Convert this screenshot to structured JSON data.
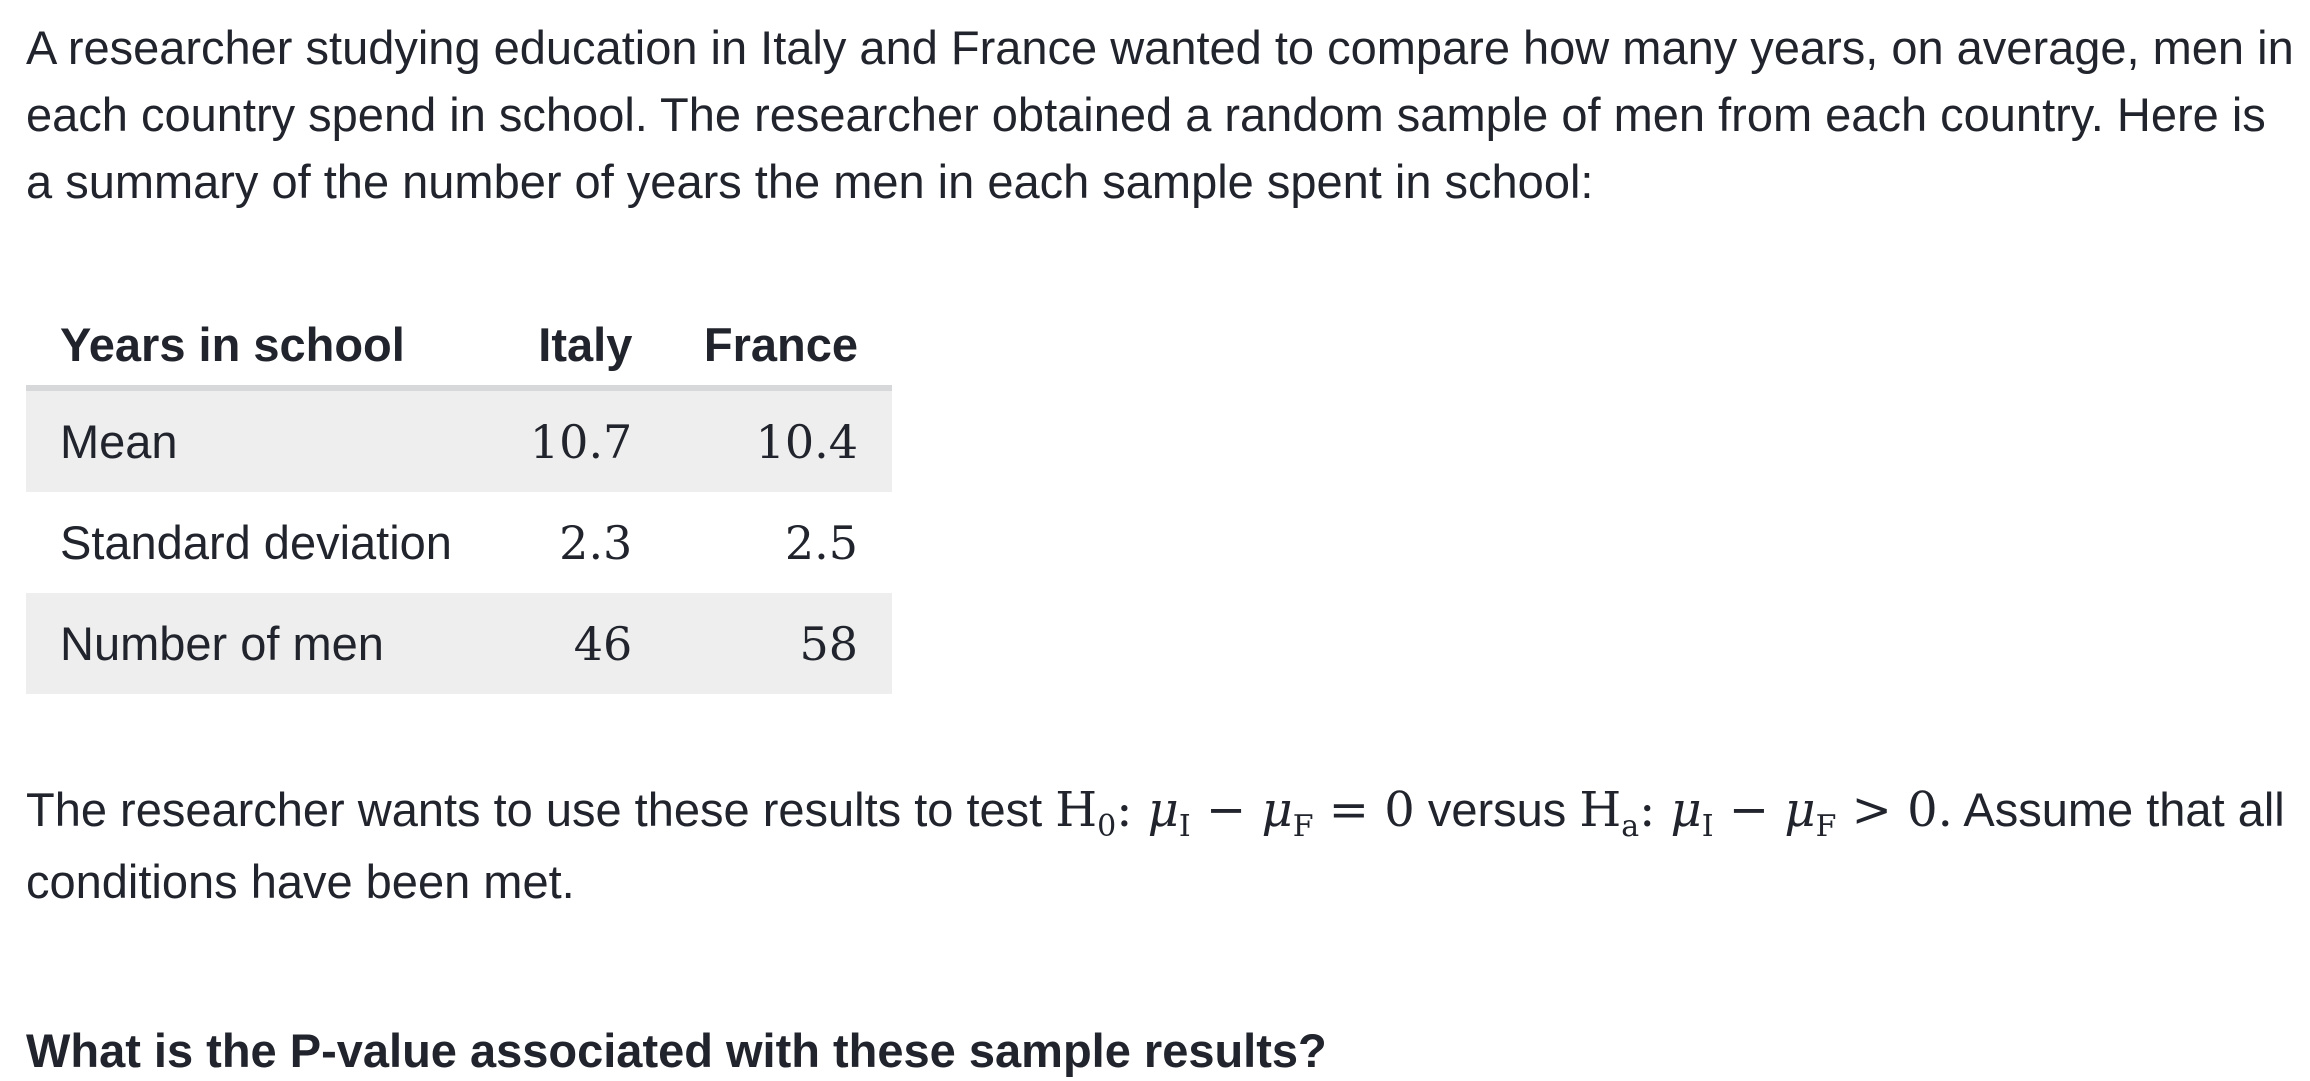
{
  "intro": {
    "text": "A researcher studying education in Italy and France wanted to compare how many years, on average, men in each country spend in school. The researcher obtained a random sample of men from each country. Here is a summary of the number of years the men in each sample spent in school:"
  },
  "table": {
    "headers": [
      "Years in school",
      "Italy",
      "France"
    ],
    "rows": [
      {
        "label": "Mean",
        "italy": "10.7",
        "france": "10.4"
      },
      {
        "label": "Standard deviation",
        "italy": "2.3",
        "france": "2.5"
      },
      {
        "label": "Number of men",
        "italy": "46",
        "france": "58"
      }
    ]
  },
  "hypothesis": {
    "lead": "The researcher wants to use these results to test ",
    "h0_symbol": "H",
    "h0_sub": "0",
    "colon": ":",
    "mu": "μ",
    "sub_i": "I",
    "sub_f": "F",
    "minus": "−",
    "eq": "=",
    "zero": "0",
    "versus": " versus ",
    "ha_symbol": "H",
    "ha_sub": "a",
    "gt": ">",
    "zero_dot": "0.",
    "tail": " Assume that all conditions have been met."
  },
  "question": {
    "text": "What is the P-value associated with these sample results?"
  }
}
